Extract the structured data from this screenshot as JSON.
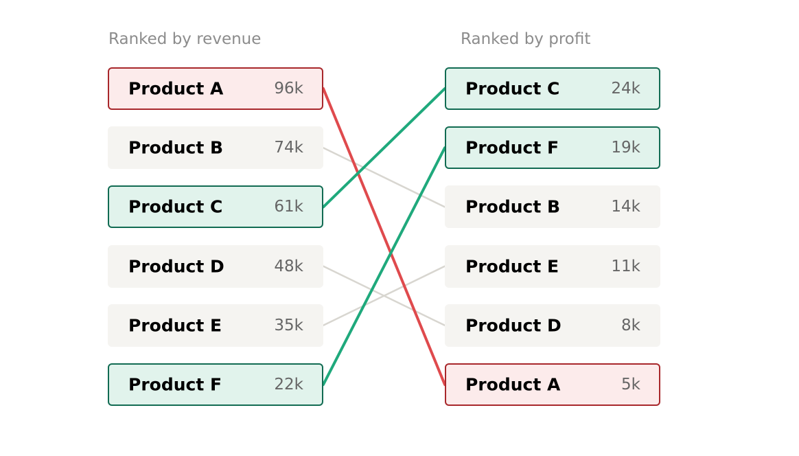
{
  "left_column": {
    "heading": "Ranked by revenue",
    "items": [
      {
        "name": "Product A",
        "value": "96k"
      },
      {
        "name": "Product B",
        "value": "74k"
      },
      {
        "name": "Product C",
        "value": "61k"
      },
      {
        "name": "Product D",
        "value": "48k"
      },
      {
        "name": "Product E",
        "value": "35k"
      },
      {
        "name": "Product F",
        "value": "22k"
      }
    ]
  },
  "right_column": {
    "heading": "Ranked by profit",
    "items": [
      {
        "name": "Product C",
        "value": "24k"
      },
      {
        "name": "Product F",
        "value": "19k"
      },
      {
        "name": "Product B",
        "value": "14k"
      },
      {
        "name": "Product E",
        "value": "11k"
      },
      {
        "name": "Product D",
        "value": "8k"
      },
      {
        "name": "Product A",
        "value": "5k"
      }
    ]
  },
  "highlights": {
    "Product A": "loss",
    "Product C": "gain",
    "Product F": "gain"
  },
  "colors": {
    "gain_line": "#1fa97c",
    "loss_line": "#df4a4d",
    "neutral_line": "#d8d6d0"
  }
}
